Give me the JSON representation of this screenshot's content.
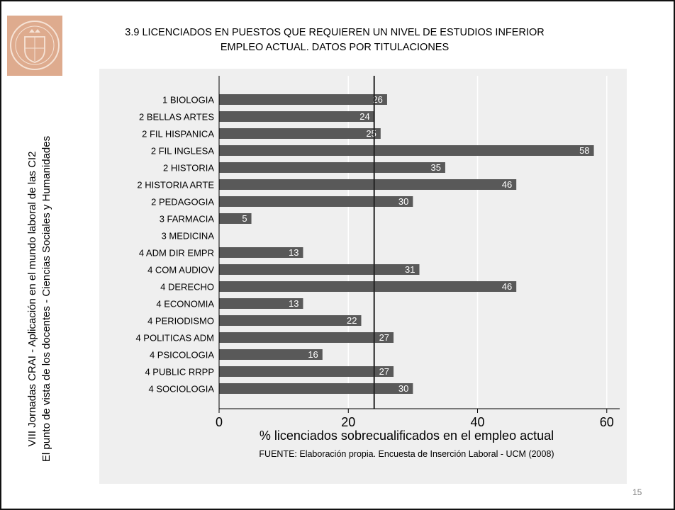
{
  "slide": {
    "title_line1": "3.9 LICENCIADOS EN PUESTOS QUE REQUIEREN UN NIVEL DE ESTUDIOS INFERIOR",
    "title_line2": "EMPLEO ACTUAL. DATOS POR TITULACIONES",
    "side_line1": "VIII Jornadas CRAI - Aplicación en el mundo laboral de las CI2",
    "side_line2": "El punto de vista de los docentes - Ciencias Sociales y Humanidades",
    "page_number": "15",
    "logo_icon": "university-seal-icon"
  },
  "chart_data": {
    "type": "bar",
    "orientation": "horizontal",
    "categories": [
      "1 BIOLOGIA",
      "2 BELLAS ARTES",
      "2 FIL HISPANICA",
      "2 FIL INGLESA",
      "2 HISTORIA",
      "2 HISTORIA ARTE",
      "2 PEDAGOGIA",
      "3 FARMACIA",
      "3 MEDICINA",
      "4 ADM DIR EMPR",
      "4 COM AUDIOV",
      "4 DERECHO",
      "4 ECONOMIA",
      "4 PERIODISMO",
      "4 POLITICAS ADM",
      "4 PSICOLOGIA",
      "4 PUBLIC RRPP",
      "4 SOCIOLOGIA"
    ],
    "values": [
      26,
      24,
      25,
      58,
      35,
      46,
      30,
      5,
      null,
      13,
      31,
      46,
      13,
      22,
      27,
      16,
      27,
      30
    ],
    "data_labels": [
      "26",
      "24",
      "25",
      "58",
      "35",
      "46",
      "30",
      "5",
      "",
      "13",
      "31",
      "46",
      "13",
      "22",
      "27",
      "16",
      "27",
      "30"
    ],
    "reference_line": 24,
    "xlim": [
      0,
      62
    ],
    "xticks": [
      0,
      20,
      40,
      60
    ],
    "xtick_labels": [
      "0",
      "20",
      "40",
      "60"
    ],
    "xlabel": "% licenciados sobrecualificados en el empleo actual",
    "note": "FUENTE: Elaboración propia. Encuesta de Inserción Laboral - UCM (2008)",
    "grid": "vertical",
    "colors": {
      "bar": "#595959",
      "background": "#efefef",
      "grid": "#ffffff",
      "reference": "#222222",
      "label_text": "#ffffff"
    }
  }
}
